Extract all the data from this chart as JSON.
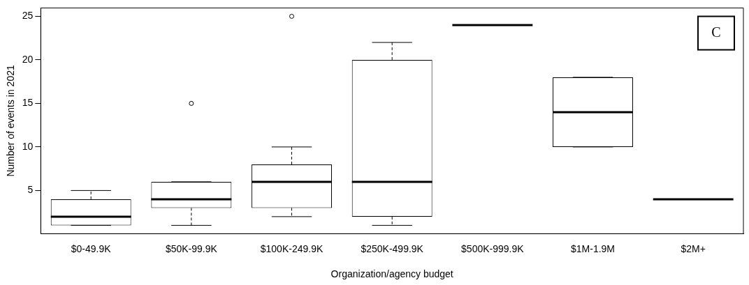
{
  "chart_data": {
    "type": "box",
    "xlabel": "Organization/agency budget",
    "ylabel": "Number of events in 2021",
    "categories": [
      "$0-49.9K",
      "$50K-99.9K",
      "$100K-249.9K",
      "$250K-499.9K",
      "$500K-999.9K",
      "$1M-1.9M",
      "$2M+"
    ],
    "boxes": [
      {
        "low": 1,
        "q1": 1,
        "median": 2,
        "q3": 4,
        "high": 5
      },
      {
        "low": 1,
        "q1": 3,
        "median": 4,
        "q3": 6,
        "high": 6,
        "outliers": [
          15
        ]
      },
      {
        "low": 2,
        "q1": 3,
        "median": 6,
        "q3": 8,
        "high": 10,
        "outliers": [
          25
        ]
      },
      {
        "low": 1,
        "q1": 2,
        "median": 6,
        "q3": 20,
        "high": 22
      },
      {
        "low": 24,
        "q1": 24,
        "median": 24,
        "q3": 24,
        "high": 24
      },
      {
        "low": 10,
        "q1": 10,
        "median": 14,
        "q3": 18,
        "high": 18
      },
      {
        "low": 4,
        "q1": 4,
        "median": 4,
        "q3": 4,
        "high": 4
      }
    ],
    "ylim": [
      0.04,
      25.96
    ],
    "yticks": [
      5,
      10,
      15,
      20,
      25
    ],
    "annotations": [
      "C"
    ],
    "grid": false,
    "legend": false
  }
}
